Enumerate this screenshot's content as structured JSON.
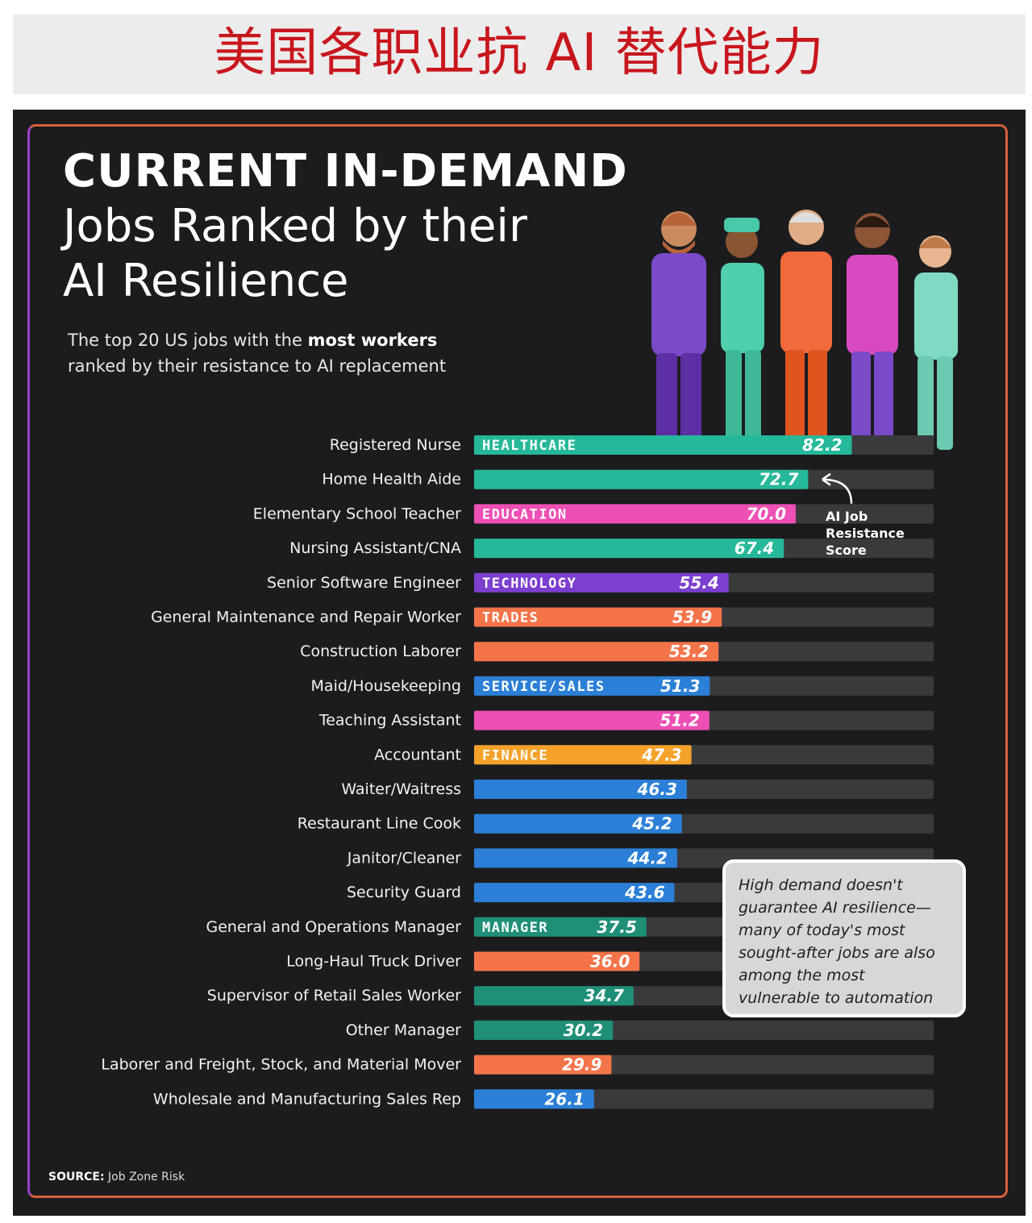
{
  "banner": {
    "title": "美国各职业抗 AI 替代能力"
  },
  "poster": {
    "title_line1": "CURRENT IN-DEMAND",
    "title_line2": "Jobs Ranked by their",
    "title_line3": "AI Resilience",
    "subtitle_pre": "The top 20 US jobs with the ",
    "subtitle_bold": "most workers",
    "subtitle_post": "ranked by their resistance to AI replacement",
    "score_note": "AI Job Resistance Score",
    "callout": "High demand doesn't guarantee AI resilience—many of today's most sought-after jobs are also among the most vulnerable to automation",
    "source_label": "SOURCE:",
    "source_text": "Job Zone Risk"
  },
  "colors": {
    "healthcare": "#26b89a",
    "education": "#ee4fb4",
    "technology": "#7c3fd0",
    "trades": "#f4744a",
    "service_sales": "#2b7fd6",
    "finance": "#f5a22a",
    "manager": "#1f8f78",
    "track": "#3a3a3d"
  },
  "chart_data": {
    "type": "bar",
    "orientation": "horizontal",
    "xlim": [
      0,
      100
    ],
    "categories": [
      "Registered Nurse",
      "Home Health Aide",
      "Elementary School Teacher",
      "Nursing Assistant/CNA",
      "Senior Software Engineer",
      "General Maintenance and Repair Worker",
      "Construction Laborer",
      "Maid/Housekeeping",
      "Teaching Assistant",
      "Accountant",
      "Waiter/Waitress",
      "Restaurant Line Cook",
      "Janitor/Cleaner",
      "Security Guard",
      "General and Operations Manager",
      "Long-Haul Truck Driver",
      "Supervisor of Retail Sales Worker",
      "Other Manager",
      "Laborer and Freight, Stock, and Material Mover",
      "Wholesale and Manufacturing Sales Rep"
    ],
    "values": [
      82.2,
      72.7,
      70.0,
      67.4,
      55.4,
      53.9,
      53.2,
      51.3,
      51.2,
      47.3,
      46.3,
      45.2,
      44.2,
      43.6,
      37.5,
      36.0,
      34.7,
      30.2,
      29.9,
      26.1
    ],
    "value_labels": [
      "82.2",
      "72.7",
      "70.0",
      "67.4",
      "55.4",
      "53.9",
      "53.2",
      "51.3",
      "51.2",
      "47.3",
      "46.3",
      "45.2",
      "44.2",
      "43.6",
      "37.5",
      "36.0",
      "34.7",
      "30.2",
      "29.9",
      "26.1"
    ],
    "bar_colors": [
      "#26b89a",
      "#26b89a",
      "#ee4fb4",
      "#26b89a",
      "#7c3fd0",
      "#f4744a",
      "#f4744a",
      "#2b7fd6",
      "#ee4fb4",
      "#f5a22a",
      "#2b7fd6",
      "#2b7fd6",
      "#2b7fd6",
      "#2b7fd6",
      "#1f8f78",
      "#f4744a",
      "#1f8f78",
      "#1f8f78",
      "#f4744a",
      "#2b7fd6"
    ],
    "category_tags": [
      "HEALTHCARE",
      "",
      "EDUCATION",
      "",
      "TECHNOLOGY",
      "TRADES",
      "",
      "SERVICE/SALES",
      "",
      "FINANCE",
      "",
      "",
      "",
      "",
      "MANAGER",
      "",
      "",
      "",
      "",
      ""
    ]
  }
}
